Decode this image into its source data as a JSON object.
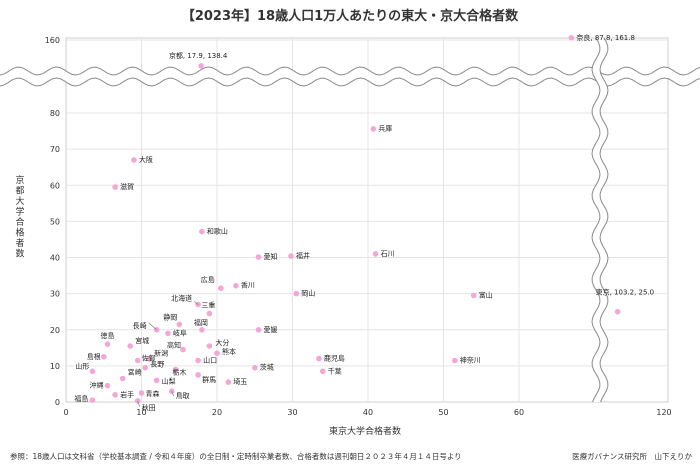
{
  "chart_data": {
    "type": "scatter",
    "title": "【2023年】18歳人口1万人あたりの東大・京大合格者数",
    "xlabel": "東京大学合格者数",
    "ylabel": "京都大学合格者数",
    "x_axis": {
      "main_range": [
        0,
        68
      ],
      "main_ticks": [
        0,
        10,
        20,
        30,
        40,
        50,
        60
      ],
      "break_ticks": [
        120
      ]
    },
    "y_axis": {
      "main_range": [
        0,
        85
      ],
      "main_ticks": [
        0,
        10,
        20,
        30,
        40,
        50,
        60,
        70,
        80
      ],
      "break_ticks": [
        160
      ]
    },
    "point_color": "#f4a6d7",
    "points": [
      {
        "name": "奈良",
        "x": 87.8,
        "y": 161.8,
        "label": "奈良, 87.8, 161.8"
      },
      {
        "name": "京都",
        "x": 17.9,
        "y": 138.4,
        "label": "京都, 17.9, 138.4"
      },
      {
        "name": "兵庫",
        "x": 40.7,
        "y": 75.6,
        "label": "兵庫"
      },
      {
        "name": "大阪",
        "x": 9.0,
        "y": 67.0,
        "label": "大阪"
      },
      {
        "name": "滋賀",
        "x": 6.5,
        "y": 59.5,
        "label": "滋賀"
      },
      {
        "name": "和歌山",
        "x": 18.0,
        "y": 47.2,
        "label": "和歌山"
      },
      {
        "name": "愛知",
        "x": 25.5,
        "y": 40.1,
        "label": "愛知"
      },
      {
        "name": "福井",
        "x": 29.8,
        "y": 40.4,
        "label": "福井"
      },
      {
        "name": "石川",
        "x": 41.0,
        "y": 41.0,
        "label": "石川"
      },
      {
        "name": "広島",
        "x": 20.5,
        "y": 31.5,
        "label": "広島"
      },
      {
        "name": "香川",
        "x": 22.5,
        "y": 32.2,
        "label": "香川"
      },
      {
        "name": "北海道",
        "x": 17.5,
        "y": 27.0,
        "label": "北海道"
      },
      {
        "name": "岡山",
        "x": 30.5,
        "y": 30.0,
        "label": "岡山"
      },
      {
        "name": "富山",
        "x": 54.0,
        "y": 29.5,
        "label": "富山"
      },
      {
        "name": "東京",
        "x": 103.2,
        "y": 25.0,
        "label": "東京, 103.2, 25.0"
      },
      {
        "name": "三重",
        "x": 19.0,
        "y": 24.5,
        "label": "三重"
      },
      {
        "name": "静岡",
        "x": 15.0,
        "y": 21.5,
        "label": "静岡"
      },
      {
        "name": "長崎",
        "x": 12.0,
        "y": 20.0,
        "label": "長崎"
      },
      {
        "name": "岐阜",
        "x": 13.5,
        "y": 19.0,
        "label": "岐阜"
      },
      {
        "name": "福岡",
        "x": 18.0,
        "y": 20.0,
        "label": "福岡"
      },
      {
        "name": "愛媛",
        "x": 25.5,
        "y": 20.0,
        "label": "愛媛"
      },
      {
        "name": "徳島",
        "x": 5.5,
        "y": 16.0,
        "label": "徳島"
      },
      {
        "name": "宮城",
        "x": 8.5,
        "y": 15.5,
        "label": "宮城"
      },
      {
        "name": "大分",
        "x": 19.0,
        "y": 15.5,
        "label": "大分"
      },
      {
        "name": "高知",
        "x": 15.5,
        "y": 14.5,
        "label": "高知"
      },
      {
        "name": "新潟",
        "x": 11.0,
        "y": 12.0,
        "label": "新潟"
      },
      {
        "name": "熊本",
        "x": 20.0,
        "y": 13.5,
        "label": "熊本"
      },
      {
        "name": "島根",
        "x": 5.0,
        "y": 12.5,
        "label": "島根"
      },
      {
        "name": "佐賀",
        "x": 9.5,
        "y": 11.5,
        "label": "佐賀"
      },
      {
        "name": "鹿児島",
        "x": 33.5,
        "y": 12.0,
        "label": "鹿児島"
      },
      {
        "name": "山口",
        "x": 17.5,
        "y": 11.5,
        "label": "山口"
      },
      {
        "name": "神奈川",
        "x": 51.5,
        "y": 11.5,
        "label": "神奈川"
      },
      {
        "name": "長野",
        "x": 10.5,
        "y": 9.5,
        "label": "長野"
      },
      {
        "name": "茨城",
        "x": 25.0,
        "y": 9.5,
        "label": "茨城"
      },
      {
        "name": "栃木",
        "x": 14.5,
        "y": 9.0,
        "label": "栃木"
      },
      {
        "name": "山形",
        "x": 3.5,
        "y": 8.5,
        "label": "山形"
      },
      {
        "name": "宮崎",
        "x": 7.5,
        "y": 6.5,
        "label": "宮崎"
      },
      {
        "name": "群馬",
        "x": 17.5,
        "y": 7.5,
        "label": "群馬"
      },
      {
        "name": "千葉",
        "x": 34.0,
        "y": 8.5,
        "label": "千葉"
      },
      {
        "name": "山梨",
        "x": 12.0,
        "y": 6.0,
        "label": "山梨"
      },
      {
        "name": "埼玉",
        "x": 21.5,
        "y": 5.5,
        "label": "埼玉"
      },
      {
        "name": "沖縄",
        "x": 5.5,
        "y": 4.5,
        "label": "沖縄"
      },
      {
        "name": "岩手",
        "x": 6.5,
        "y": 2.0,
        "label": "岩手"
      },
      {
        "name": "青森",
        "x": 10.0,
        "y": 2.5,
        "label": "青森"
      },
      {
        "name": "鳥取",
        "x": 14.0,
        "y": 3.0,
        "label": "鳥取"
      },
      {
        "name": "福島",
        "x": 3.5,
        "y": 0.5,
        "label": "福島"
      },
      {
        "name": "秋田",
        "x": 9.5,
        "y": 0.3,
        "label": "秋田"
      }
    ]
  },
  "footer": {
    "note": "参照：18歳人口は文科省（学校基本調査 / 令和４年度）の全日制・定時制卒業者数、合格者数は週刊朝日２０２３年４月１４日号より",
    "credit": "医療ガバナンス研究所　山下えりか"
  }
}
